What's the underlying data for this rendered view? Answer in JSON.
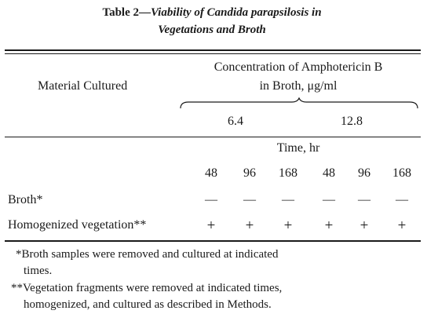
{
  "table": {
    "title_prefix": "Table 2—",
    "title_line1_italic": "Viability of Candida parapsilosis in",
    "title_line2_italic": "Vegetations and Broth",
    "row_header": "Material Cultured",
    "col_group_header_line1": "Concentration of Amphotericin B",
    "col_group_header_line2": "in Broth, μg/ml",
    "concentrations": [
      "6.4",
      "12.8"
    ],
    "time_header": "Time, hr",
    "times": [
      "48",
      "96",
      "168",
      "48",
      "96",
      "168"
    ],
    "rows": [
      {
        "label": "Broth*",
        "values": [
          "—",
          "—",
          "—",
          "—",
          "—",
          "—"
        ]
      },
      {
        "label": "Homogenized vegetation**",
        "values": [
          "+",
          "+",
          "+",
          "+",
          "+",
          "+"
        ]
      }
    ],
    "footnote1_line1": "*Broth samples were removed and cultured at indicated",
    "footnote1_line2": "times.",
    "footnote2_line1": "**Vegetation fragments were removed at indicated times,",
    "footnote2_line2": "homogenized, and cultured as described in Methods."
  }
}
